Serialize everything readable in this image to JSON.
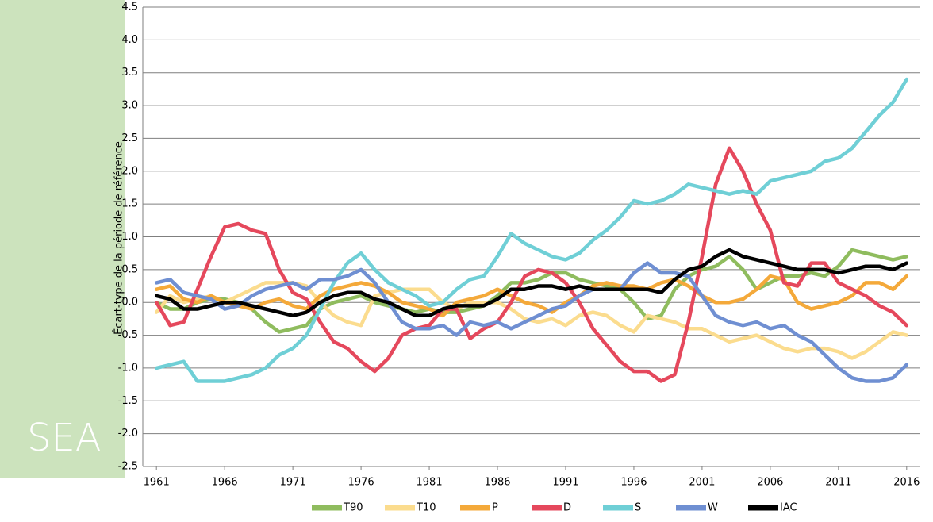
{
  "chart_data": {
    "type": "line",
    "panel_label": "SEA",
    "y_label": "Écart-type de la période de référence",
    "xlim": [
      1960,
      2017
    ],
    "xticks": [
      1961,
      1966,
      1971,
      1976,
      1981,
      1986,
      1991,
      1996,
      2001,
      2006,
      2011,
      2016
    ],
    "ylim": [
      -2.5,
      4.5
    ],
    "yticks": [
      4.5,
      {
        "value": 4,
        "label": "4.0"
      },
      3.5,
      {
        "value": 3,
        "label": "3.0"
      },
      2.5,
      {
        "value": 2,
        "label": "2.0"
      },
      1.5,
      {
        "value": 1,
        "label": "1.0"
      },
      0.5,
      {
        "value": 0,
        "label": "0.0"
      },
      -0.5,
      {
        "value": -1,
        "label": "-1.0"
      },
      -1.5,
      {
        "value": -2,
        "label": "-2.0"
      },
      -2.5
    ],
    "grid": true,
    "legend": "bottom",
    "x": [
      1961,
      1962,
      1963,
      1964,
      1965,
      1966,
      1967,
      1968,
      1969,
      1970,
      1971,
      1972,
      1973,
      1974,
      1975,
      1976,
      1977,
      1978,
      1979,
      1980,
      1981,
      1982,
      1983,
      1984,
      1985,
      1986,
      1987,
      1988,
      1989,
      1990,
      1991,
      1992,
      1993,
      1994,
      1995,
      1996,
      1997,
      1998,
      1999,
      2000,
      2001,
      2002,
      2003,
      2004,
      2005,
      2006,
      2007,
      2008,
      2009,
      2010,
      2011,
      2012,
      2013,
      2014,
      2015,
      2016
    ],
    "series": [
      {
        "name": "T90",
        "color": "#8fbc5e",
        "values": [
          0.0,
          -0.1,
          -0.1,
          0.0,
          0.05,
          0.05,
          0.0,
          -0.1,
          -0.3,
          -0.45,
          -0.4,
          -0.35,
          -0.1,
          0.0,
          0.05,
          0.1,
          0.0,
          -0.05,
          -0.1,
          -0.15,
          -0.1,
          -0.15,
          -0.15,
          -0.1,
          -0.05,
          0.1,
          0.3,
          0.3,
          0.35,
          0.45,
          0.45,
          0.35,
          0.3,
          0.25,
          0.2,
          0.0,
          -0.25,
          -0.2,
          0.2,
          0.4,
          0.5,
          0.55,
          0.7,
          0.5,
          0.2,
          0.3,
          0.4,
          0.4,
          0.45,
          0.4,
          0.55,
          0.8,
          0.75,
          0.7,
          0.65,
          0.7
        ]
      },
      {
        "name": "T10",
        "color": "#fbdc8e",
        "values": [
          -0.15,
          0.1,
          0.0,
          0.05,
          0.1,
          0.0,
          0.1,
          0.2,
          0.3,
          0.3,
          0.3,
          0.25,
          0.0,
          -0.2,
          -0.3,
          -0.35,
          0.1,
          0.15,
          0.2,
          0.2,
          0.2,
          0.0,
          -0.1,
          0.0,
          0.0,
          0.0,
          -0.1,
          -0.25,
          -0.3,
          -0.25,
          -0.35,
          -0.2,
          -0.15,
          -0.2,
          -0.35,
          -0.45,
          -0.2,
          -0.25,
          -0.3,
          -0.4,
          -0.4,
          -0.5,
          -0.6,
          -0.55,
          -0.5,
          -0.6,
          -0.7,
          -0.75,
          -0.7,
          -0.7,
          -0.75,
          -0.85,
          -0.75,
          -0.6,
          -0.45,
          -0.5
        ]
      },
      {
        "name": "P",
        "color": "#f4a93a",
        "values": [
          0.2,
          0.25,
          0.05,
          0.0,
          0.1,
          0.0,
          -0.05,
          -0.1,
          0.0,
          0.05,
          -0.05,
          -0.1,
          0.1,
          0.2,
          0.25,
          0.3,
          0.25,
          0.15,
          0.0,
          -0.05,
          -0.1,
          -0.2,
          0.0,
          0.05,
          0.1,
          0.2,
          0.1,
          0.0,
          -0.05,
          -0.15,
          0.0,
          0.1,
          0.25,
          0.3,
          0.25,
          0.25,
          0.2,
          0.3,
          0.35,
          0.25,
          0.1,
          0.0,
          0.0,
          0.05,
          0.2,
          0.4,
          0.35,
          0.0,
          -0.1,
          -0.05,
          0.0,
          0.1,
          0.3,
          0.3,
          0.2,
          0.4
        ]
      },
      {
        "name": "D",
        "color": "#e5485c",
        "values": [
          0.0,
          -0.35,
          -0.3,
          0.2,
          0.7,
          1.15,
          1.2,
          1.1,
          1.05,
          0.5,
          0.15,
          0.05,
          -0.3,
          -0.6,
          -0.7,
          -0.9,
          -1.05,
          -0.85,
          -0.5,
          -0.4,
          -0.35,
          -0.1,
          -0.1,
          -0.55,
          -0.4,
          -0.3,
          0.0,
          0.4,
          0.5,
          0.45,
          0.3,
          0.0,
          -0.4,
          -0.65,
          -0.9,
          -1.05,
          -1.05,
          -1.2,
          -1.1,
          -0.3,
          0.7,
          1.8,
          2.35,
          2.0,
          1.5,
          1.1,
          0.3,
          0.25,
          0.6,
          0.6,
          0.3,
          0.2,
          0.1,
          -0.05,
          -0.15,
          -0.35
        ]
      },
      {
        "name": "S",
        "color": "#6fcfd6",
        "values": [
          -1.0,
          -0.95,
          -0.9,
          -1.2,
          -1.2,
          -1.2,
          -1.15,
          -1.1,
          -1.0,
          -0.8,
          -0.7,
          -0.5,
          -0.1,
          0.3,
          0.6,
          0.75,
          0.5,
          0.3,
          0.2,
          0.1,
          -0.05,
          0.0,
          0.2,
          0.35,
          0.4,
          0.7,
          1.05,
          0.9,
          0.8,
          0.7,
          0.65,
          0.75,
          0.95,
          1.1,
          1.3,
          1.55,
          1.5,
          1.55,
          1.65,
          1.8,
          1.75,
          1.7,
          1.65,
          1.7,
          1.65,
          1.85,
          1.9,
          1.95,
          2.0,
          2.15,
          2.2,
          2.35,
          2.6,
          2.85,
          3.05,
          3.4
        ]
      },
      {
        "name": "W",
        "color": "#6f8fd2",
        "values": [
          0.3,
          0.35,
          0.15,
          0.1,
          0.05,
          -0.1,
          -0.05,
          0.1,
          0.2,
          0.25,
          0.3,
          0.2,
          0.35,
          0.35,
          0.4,
          0.5,
          0.3,
          0.0,
          -0.3,
          -0.4,
          -0.4,
          -0.35,
          -0.5,
          -0.3,
          -0.35,
          -0.3,
          -0.4,
          -0.3,
          -0.2,
          -0.1,
          -0.05,
          0.1,
          0.2,
          0.2,
          0.2,
          0.45,
          0.6,
          0.45,
          0.45,
          0.4,
          0.1,
          -0.2,
          -0.3,
          -0.35,
          -0.3,
          -0.4,
          -0.35,
          -0.5,
          -0.6,
          -0.8,
          -1.0,
          -1.15,
          -1.2,
          -1.2,
          -1.15,
          -0.95
        ]
      },
      {
        "name": "IAC",
        "color": "#000000",
        "values": [
          0.1,
          0.05,
          -0.1,
          -0.1,
          -0.05,
          0.0,
          0.0,
          -0.05,
          -0.1,
          -0.15,
          -0.2,
          -0.15,
          0.0,
          0.1,
          0.15,
          0.15,
          0.05,
          0.0,
          -0.1,
          -0.2,
          -0.2,
          -0.1,
          -0.05,
          -0.05,
          -0.05,
          0.05,
          0.2,
          0.2,
          0.25,
          0.25,
          0.2,
          0.25,
          0.2,
          0.2,
          0.2,
          0.2,
          0.2,
          0.15,
          0.35,
          0.5,
          0.55,
          0.7,
          0.8,
          0.7,
          0.65,
          0.6,
          0.55,
          0.5,
          0.5,
          0.5,
          0.45,
          0.5,
          0.55,
          0.55,
          0.5,
          0.6
        ]
      }
    ]
  }
}
